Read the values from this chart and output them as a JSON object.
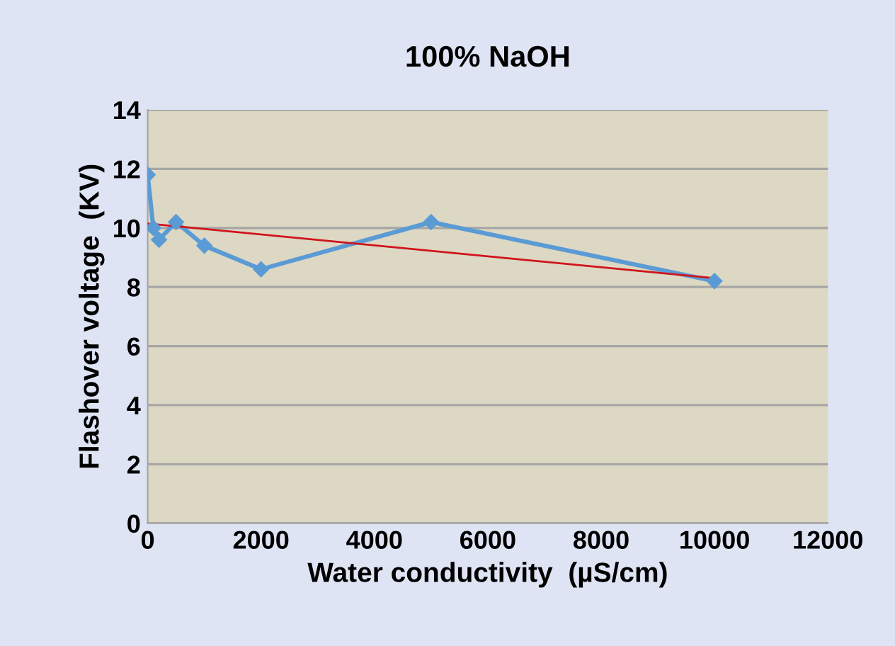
{
  "chart_data": {
    "type": "line",
    "title": "100% NaOH",
    "xlabel": "Water conductivity  (µS/cm)",
    "ylabel": "Flashover voltage  (KV)",
    "series": [
      {
        "color": "#5b9bd5",
        "marker": "diamond",
        "x": [
          0,
          100,
          200,
          500,
          1000,
          2000,
          5000,
          10000
        ],
        "values": [
          11.8,
          10.0,
          9.6,
          10.2,
          9.4,
          8.6,
          10.2,
          8.2
        ]
      },
      {
        "color": "#d0141c",
        "marker": "none",
        "x": [
          0,
          10000
        ],
        "values": [
          10.15,
          8.3
        ]
      }
    ],
    "xlim": [
      0,
      12000
    ],
    "xticks": [
      0,
      2000,
      4000,
      6000,
      8000,
      10000,
      12000
    ],
    "ylim": [
      0,
      14
    ],
    "yticks": [
      0,
      2,
      4,
      6,
      8,
      10,
      12,
      14
    ],
    "grid": "y",
    "legend": false
  }
}
